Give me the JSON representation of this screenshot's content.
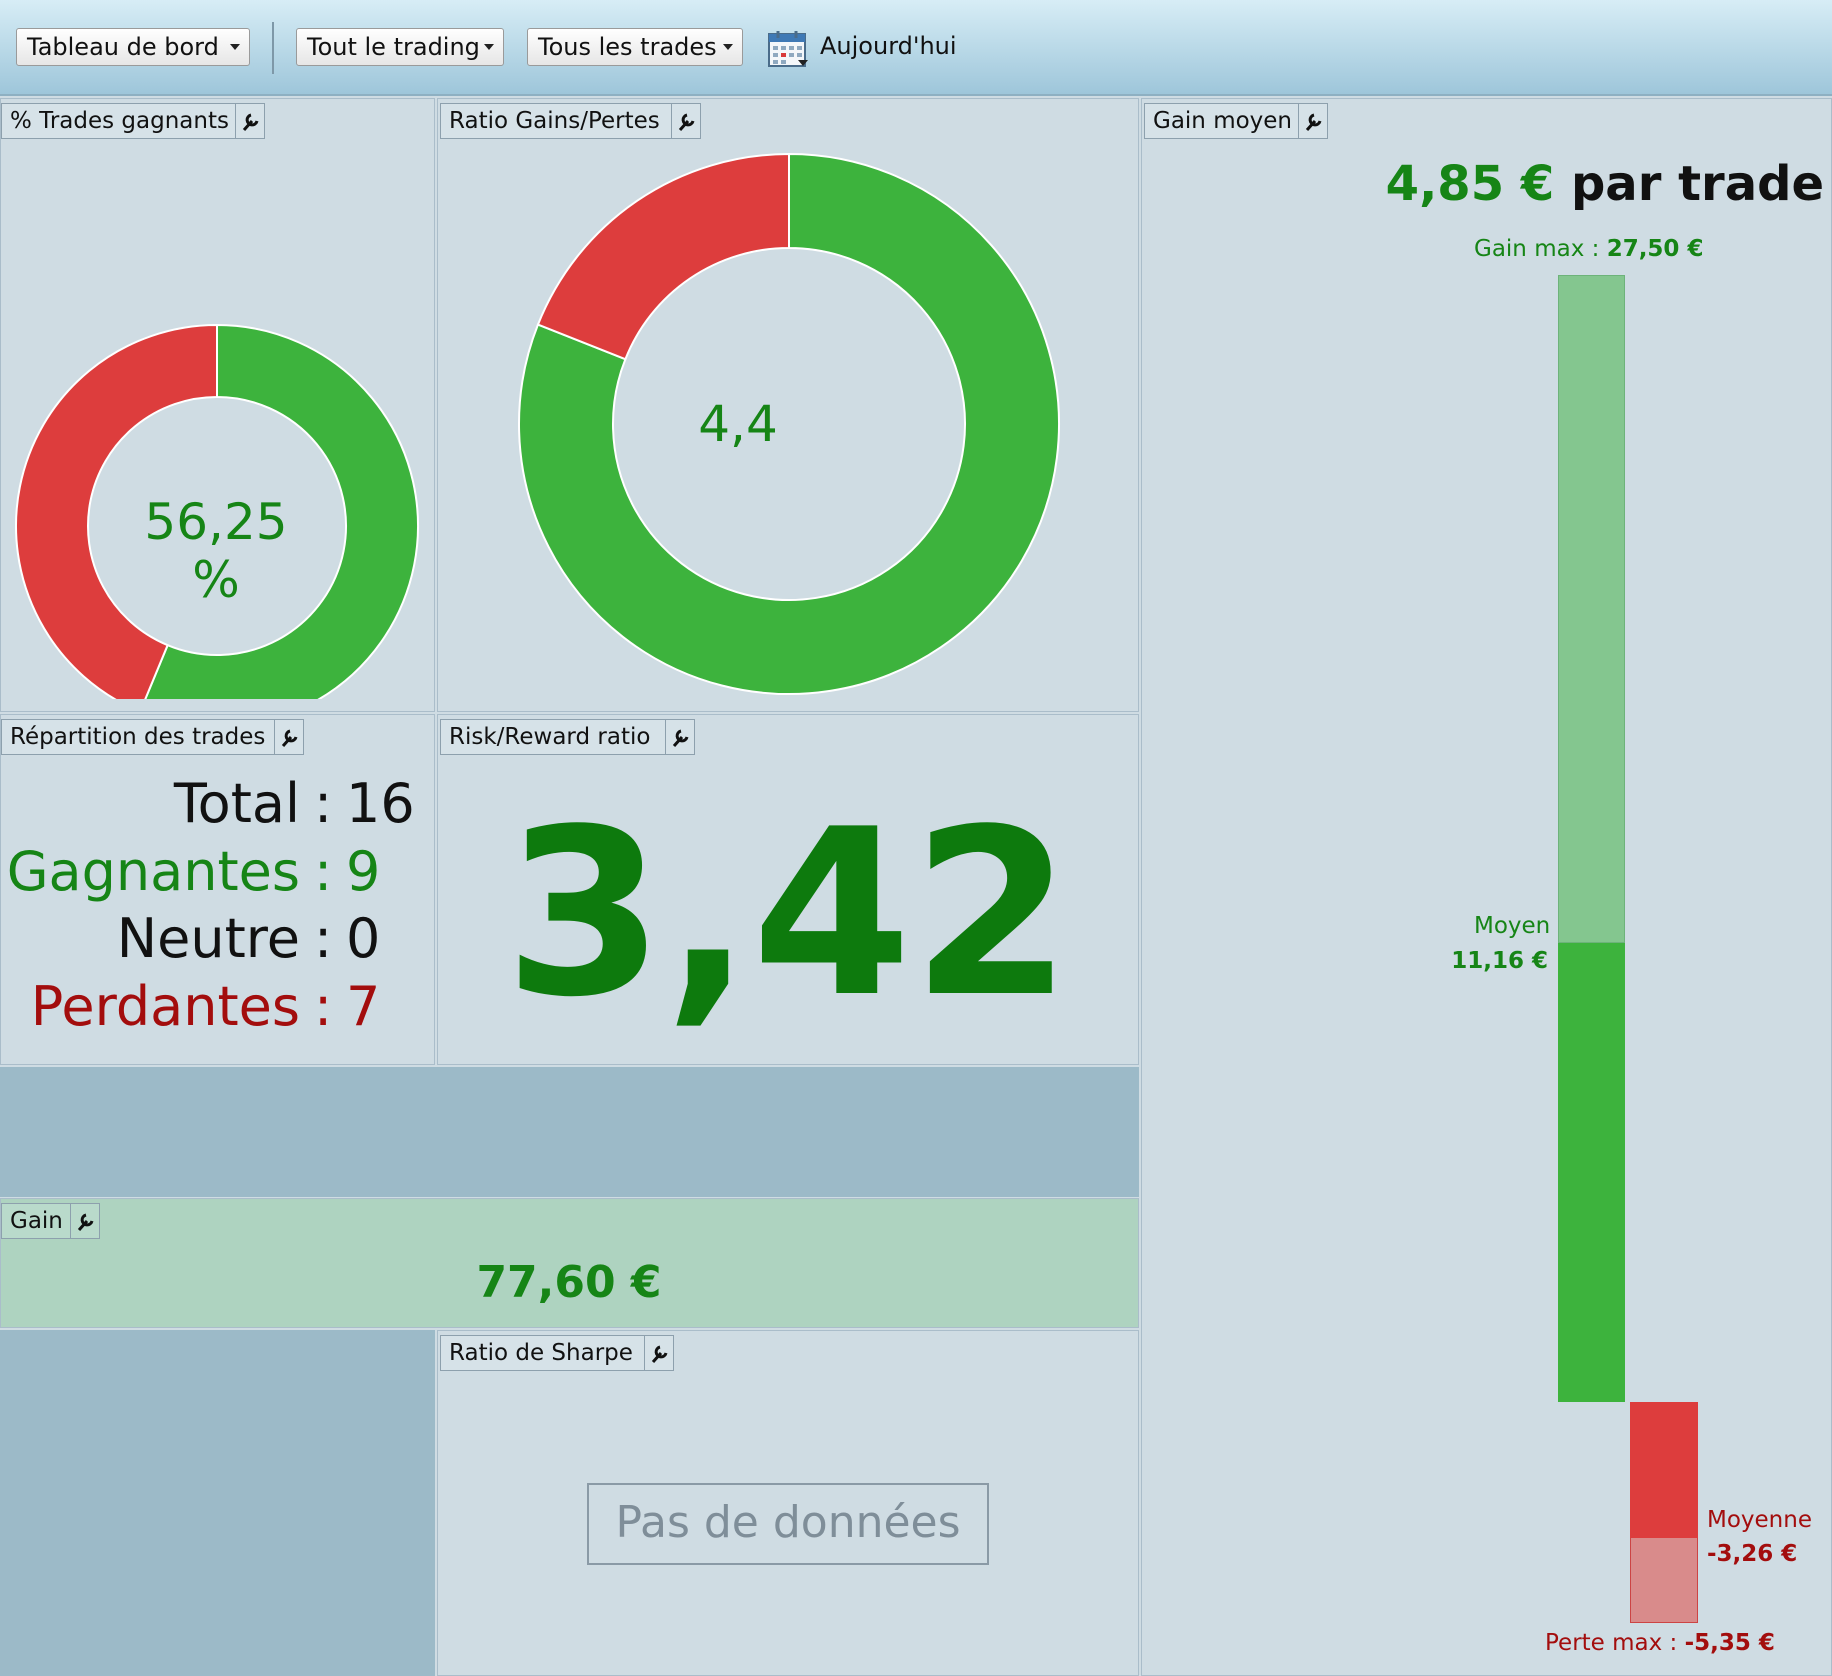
{
  "toolbar": {
    "dashboard_label": "Tableau de bord",
    "trading_label": "Tout le trading",
    "trades_label": "Tous les trades",
    "today_label": "Aujourd'hui"
  },
  "panels": {
    "win_pct": {
      "title": "% Trades gagnants",
      "center": "56,25 %",
      "win_fraction": 0.5625
    },
    "gain_loss_ratio": {
      "title": "Ratio Gains/Pertes",
      "center": "4,4",
      "win_fraction": 0.81
    },
    "average_gain": {
      "title": "Gain moyen",
      "amount": "4,85 €",
      "per_trade": "par trade",
      "max_gain_label": "Gain max :",
      "max_gain_value": "27,50 €",
      "avg_gain_label": "Moyen",
      "avg_gain_value": "11,16 €",
      "avg_loss_label": "Moyenne",
      "avg_loss_value": "-3,26 €",
      "max_loss_label": "Perte max :",
      "max_loss_value": "-5,35 €"
    },
    "distribution": {
      "title": "Répartition des trades",
      "total_label": "Total",
      "total_value": "16",
      "winners_label": "Gagnantes",
      "winners_value": "9",
      "neutral_label": "Neutre",
      "neutral_value": "0",
      "losers_label": "Perdantes",
      "losers_value": "7",
      "separator": ":"
    },
    "risk_reward": {
      "title": "Risk/Reward ratio",
      "value": "3,42"
    },
    "gain": {
      "title": "Gain",
      "value": "77,60 €"
    },
    "sharpe": {
      "title": "Ratio de Sharpe",
      "no_data": "Pas de données"
    }
  },
  "colors": {
    "win": "#3db33d",
    "loss": "#dd3d3d",
    "win_text": "#168516",
    "loss_text": "#a30d0d",
    "win_light": "#84c68f",
    "loss_light": "#d98b8b",
    "gain_bg": "#aed3c0"
  }
}
